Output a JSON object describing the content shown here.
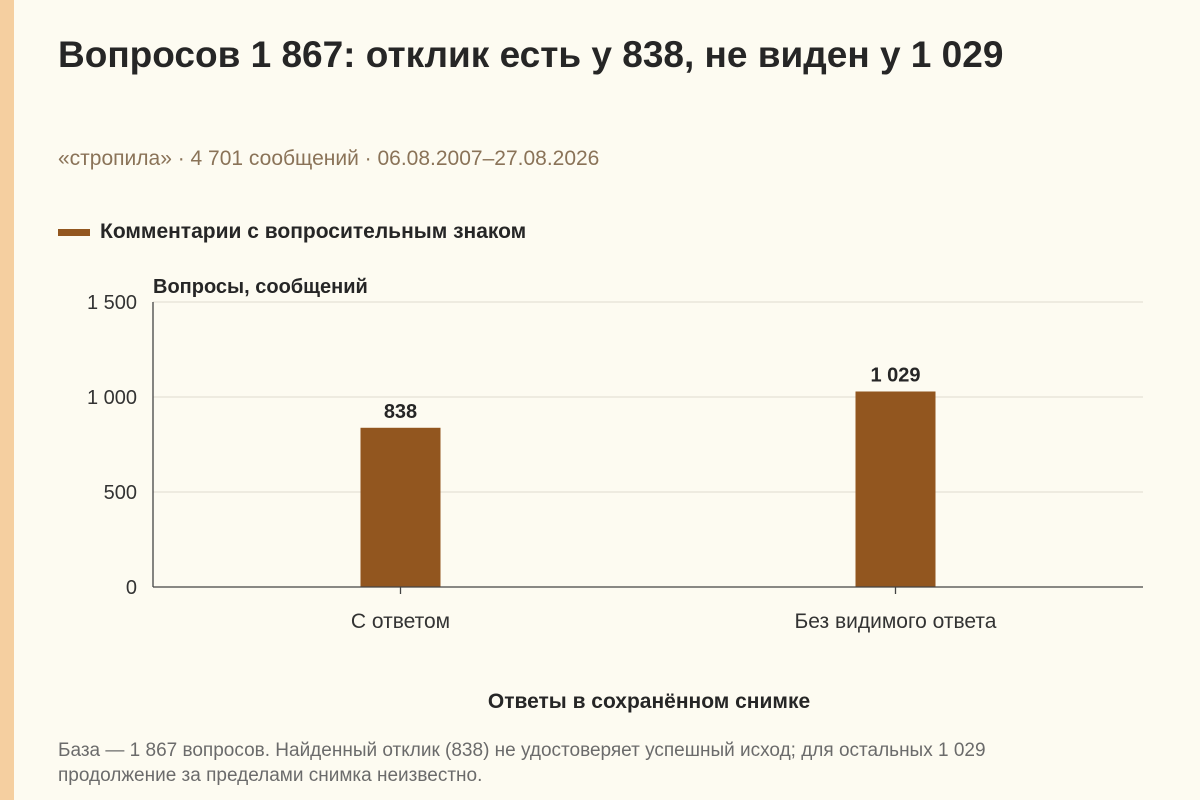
{
  "title": "Вопросов 1 867: отклик есть у 838, не виден у 1 029",
  "subtitle": "«стропила» · 4 701 сообщений · 06.08.2007–27.08.2026",
  "note": "База — 1 867 вопросов. Найденный отклик (838) не удостоверяет успешный исход; для остальных 1 029 продолжение за пределами снимка неизвестно.",
  "colors": {
    "background": "#fdfbf1",
    "stripe": "#f5cfa0",
    "bar": "#92561f",
    "grid": "#dedbd0",
    "axis": "#444444"
  },
  "chart_data": {
    "type": "bar",
    "title": "Вопросов 1 867: отклик есть у 838, не виден у 1 029",
    "categories": [
      "С ответом",
      "Без видимого ответа"
    ],
    "series": [
      {
        "name": "Комментарии с вопросительным знаком",
        "values": [
          838,
          1029
        ]
      }
    ],
    "data_labels": [
      "838",
      "1 029"
    ],
    "xlabel": "Ответы в сохранённом снимке",
    "ylabel": "Вопросы, сообщений",
    "ylim": [
      0,
      1500
    ],
    "yticks": [
      0,
      500,
      1000,
      1500
    ],
    "ytick_labels": [
      "0",
      "500",
      "1 000",
      "1 500"
    ],
    "grid": true,
    "legend_position": "top-left"
  }
}
